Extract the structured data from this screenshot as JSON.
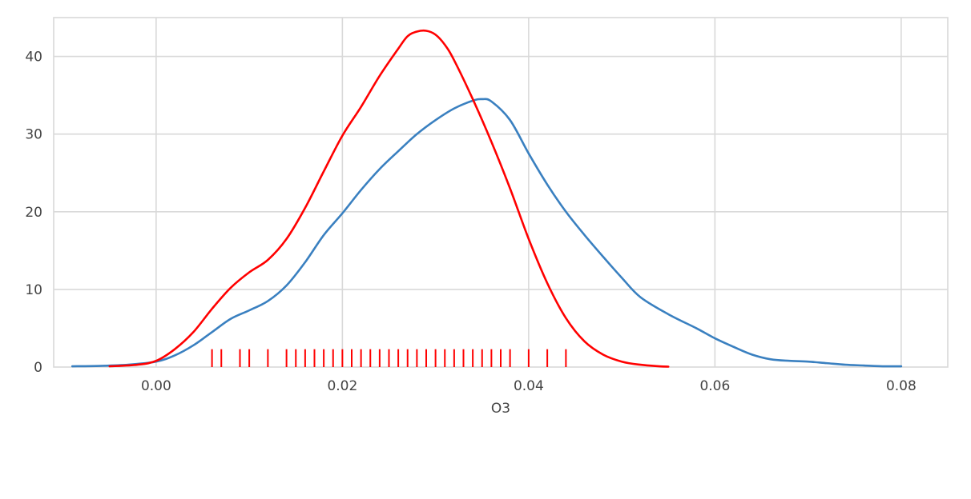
{
  "chart_data": {
    "type": "line",
    "xlabel": "O3",
    "ylabel": "",
    "xlim": [
      -0.011,
      0.085
    ],
    "ylim": [
      0,
      45
    ],
    "grid": true,
    "x_ticks": [
      0.0,
      0.02,
      0.04,
      0.06,
      0.08
    ],
    "x_tick_labels": [
      "0.00",
      "0.02",
      "0.04",
      "0.06",
      "0.08"
    ],
    "y_ticks": [
      0,
      10,
      20,
      30,
      40
    ],
    "y_tick_labels": [
      "0",
      "10",
      "20",
      "30",
      "40"
    ],
    "series": [
      {
        "color": "#3a80c0",
        "x": [
          -0.009,
          -0.006,
          -0.003,
          0.0,
          0.002,
          0.004,
          0.006,
          0.008,
          0.01,
          0.012,
          0.014,
          0.016,
          0.018,
          0.02,
          0.022,
          0.024,
          0.026,
          0.028,
          0.03,
          0.032,
          0.034,
          0.035,
          0.036,
          0.038,
          0.04,
          0.042,
          0.044,
          0.046,
          0.048,
          0.05,
          0.052,
          0.055,
          0.058,
          0.06,
          0.062,
          0.064,
          0.066,
          0.068,
          0.07,
          0.072,
          0.074,
          0.076,
          0.078,
          0.08
        ],
        "y": [
          0.1,
          0.15,
          0.3,
          0.7,
          1.5,
          2.8,
          4.5,
          6.2,
          7.3,
          8.5,
          10.5,
          13.5,
          17.0,
          19.8,
          22.8,
          25.5,
          27.8,
          30.0,
          31.8,
          33.3,
          34.3,
          34.5,
          34.2,
          31.8,
          27.5,
          23.5,
          20.0,
          17.0,
          14.2,
          11.5,
          9.0,
          6.8,
          5.0,
          3.7,
          2.6,
          1.6,
          1.0,
          0.8,
          0.7,
          0.5,
          0.3,
          0.2,
          0.1,
          0.1
        ]
      },
      {
        "color": "#ff0000",
        "x": [
          -0.005,
          -0.002,
          0.0,
          0.002,
          0.004,
          0.006,
          0.008,
          0.01,
          0.012,
          0.014,
          0.016,
          0.018,
          0.02,
          0.022,
          0.024,
          0.026,
          0.027,
          0.028,
          0.029,
          0.03,
          0.031,
          0.032,
          0.034,
          0.036,
          0.038,
          0.04,
          0.042,
          0.044,
          0.046,
          0.048,
          0.05,
          0.052,
          0.054,
          0.055
        ],
        "y": [
          0.1,
          0.3,
          0.8,
          2.3,
          4.5,
          7.5,
          10.2,
          12.2,
          13.8,
          16.5,
          20.5,
          25.2,
          29.8,
          33.5,
          37.5,
          41.0,
          42.6,
          43.2,
          43.3,
          42.8,
          41.5,
          39.5,
          34.5,
          29.0,
          23.0,
          16.5,
          10.8,
          6.3,
          3.3,
          1.6,
          0.7,
          0.3,
          0.1,
          0.05
        ]
      }
    ],
    "rug": {
      "color": "#ff0000",
      "values": [
        0.006,
        0.007,
        0.009,
        0.01,
        0.012,
        0.014,
        0.015,
        0.016,
        0.017,
        0.018,
        0.019,
        0.02,
        0.021,
        0.022,
        0.023,
        0.024,
        0.025,
        0.026,
        0.027,
        0.028,
        0.029,
        0.03,
        0.031,
        0.032,
        0.033,
        0.034,
        0.035,
        0.036,
        0.037,
        0.038,
        0.04,
        0.042,
        0.044
      ],
      "height": 2.3
    }
  }
}
